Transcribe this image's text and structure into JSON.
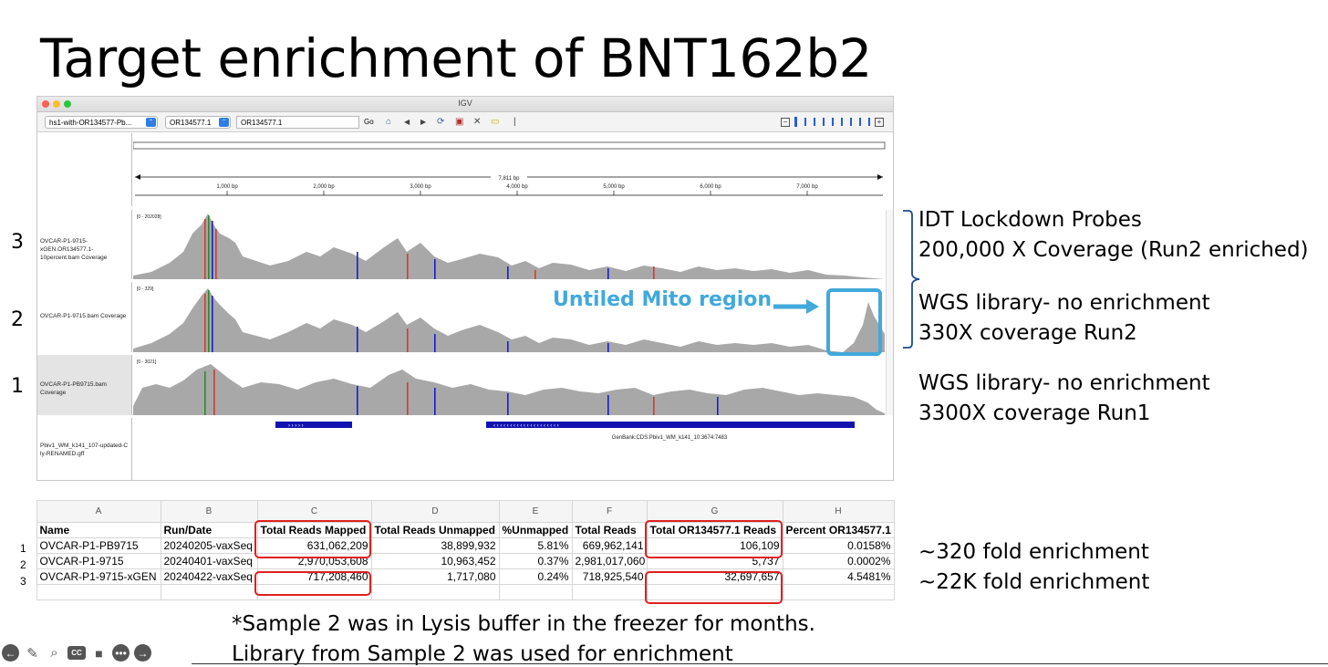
{
  "slide": {
    "title": "Target enrichment of  BNT162b2"
  },
  "igv": {
    "window_title": "IGV",
    "genome_combo": "hs1-with-OR134577-Pb...",
    "chrom_combo": "OR134577.1",
    "locus_value": "OR134577.1",
    "go_label": "Go",
    "ruler": {
      "span_label": "7,811 bp",
      "ticks": [
        "1,000 bp",
        "2,000 bp",
        "3,000 bp",
        "4,000 bp",
        "5,000 bp",
        "6,000 bp",
        "7,000 bp"
      ]
    },
    "tracks": [
      {
        "num": "3",
        "name": "OVCAR-P1-9715-xGEN.OR134577.1-10percent.bam Coverage",
        "range": "[0 - 202028]"
      },
      {
        "num": "2",
        "name": "OVCAR-P1-9715.bam Coverage",
        "range": "[0 - 329]"
      },
      {
        "num": "1",
        "name": "OVCAR-P1-PB9715.bam Coverage",
        "range": "[0 - 3021]"
      }
    ],
    "annotation_track": {
      "name": "Pbiv1_WM_k141_107-updated-C ly-RENAMED.gff",
      "feature_label": "GenBank:CDS:Pbiv1_WM_k141_10:3674:7483"
    },
    "callout": "Untiled Mito region",
    "accent_color": "#41a9dc"
  },
  "notes": {
    "idt_line1": "IDT Lockdown Probes",
    "idt_line2": "200,000 X Coverage (Run2 enriched)",
    "wgs2_line1": "WGS library- no enrichment",
    "wgs2_line2": "330X coverage Run2",
    "wgs1_line1": "WGS library- no enrichment",
    "wgs1_line2": "3300X coverage Run1",
    "fold1": "~320 fold enrichment",
    "fold2": "~22K fold enrichment"
  },
  "sheet": {
    "col_letters": [
      "A",
      "B",
      "C",
      "D",
      "E",
      "F",
      "G",
      "H"
    ],
    "headers": [
      "Name",
      "Run/Date",
      "Total Reads Mapped",
      "Total Reads Unmapped",
      "%Unmapped",
      "Total Reads",
      "Total OR134577.1 Reads",
      "Percent OR134577.1"
    ],
    "rows": [
      {
        "n": "1",
        "cells": [
          "OVCAR-P1-PB9715",
          "20240205-vaxSeq",
          "631,062,209",
          "38,899,932",
          "5.81%",
          "669,962,141",
          "106,109",
          "0.0158%"
        ]
      },
      {
        "n": "2",
        "cells": [
          "OVCAR-P1-9715",
          "20240401-vaxSeq",
          "2,970,053,608",
          "10,963,452",
          "0.37%",
          "2,981,017,060",
          "5,737",
          "0.0002%"
        ]
      },
      {
        "n": "3",
        "cells": [
          "OVCAR-P1-9715-xGEN",
          "20240422-vaxSeq",
          "717,208,460",
          "1,717,080",
          "0.24%",
          "718,925,540",
          "32,697,657",
          "4.5481%"
        ]
      }
    ]
  },
  "footnote": {
    "line1": "*Sample 2 was in Lysis buffer in the freezer for months.",
    "line2": "Library from Sample 2 was used for enrichment"
  }
}
